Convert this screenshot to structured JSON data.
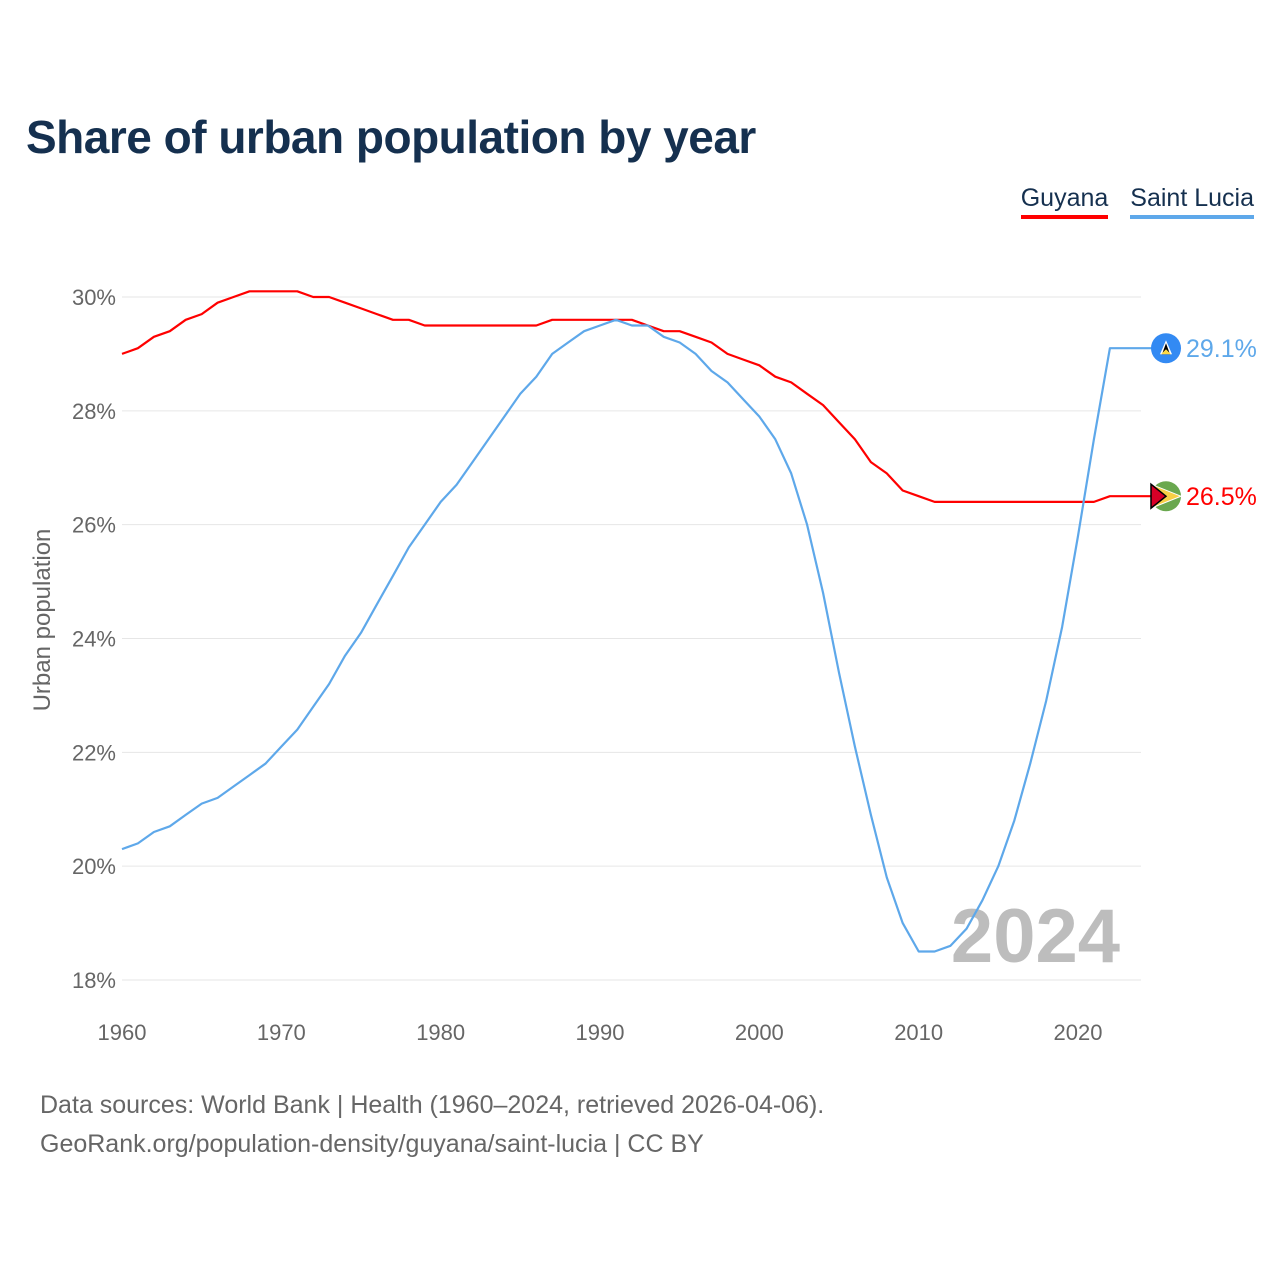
{
  "chart_data": {
    "type": "line",
    "title": "Share of urban population by year",
    "ylabel": "Urban population",
    "xlabel": "",
    "ylim": [
      18,
      30
    ],
    "xlim": [
      1960,
      2024
    ],
    "yticks": [
      "18%",
      "20%",
      "22%",
      "24%",
      "26%",
      "28%",
      "30%"
    ],
    "ytick_values": [
      18,
      20,
      22,
      24,
      26,
      28,
      30
    ],
    "xticks": [
      1960,
      1970,
      1980,
      1990,
      2000,
      2010,
      2020
    ],
    "grid": true,
    "legend_position": "top-right",
    "year_watermark": "2024",
    "series": [
      {
        "name": "Guyana",
        "color": "#ff0000",
        "end_label": "26.5%",
        "values": [
          29.0,
          29.1,
          29.3,
          29.4,
          29.6,
          29.7,
          29.9,
          30.0,
          30.1,
          30.1,
          30.1,
          30.1,
          30.0,
          30.0,
          29.9,
          29.8,
          29.7,
          29.6,
          29.6,
          29.5,
          29.5,
          29.5,
          29.5,
          29.5,
          29.5,
          29.5,
          29.5,
          29.6,
          29.6,
          29.6,
          29.6,
          29.6,
          29.6,
          29.5,
          29.4,
          29.4,
          29.3,
          29.2,
          29.0,
          28.9,
          28.8,
          28.6,
          28.5,
          28.3,
          28.1,
          27.8,
          27.5,
          27.1,
          26.9,
          26.6,
          26.5,
          26.4,
          26.4,
          26.4,
          26.4,
          26.4,
          26.4,
          26.4,
          26.4,
          26.4,
          26.4,
          26.4,
          26.5,
          26.5,
          26.5
        ]
      },
      {
        "name": "Saint Lucia",
        "color": "#5ea8ea",
        "end_label": "29.1%",
        "values": [
          20.3,
          20.4,
          20.6,
          20.7,
          20.9,
          21.1,
          21.2,
          21.4,
          21.6,
          21.8,
          22.1,
          22.4,
          22.8,
          23.2,
          23.7,
          24.1,
          24.6,
          25.1,
          25.6,
          26.0,
          26.4,
          26.7,
          27.1,
          27.5,
          27.9,
          28.3,
          28.6,
          29.0,
          29.2,
          29.4,
          29.5,
          29.6,
          29.5,
          29.5,
          29.3,
          29.2,
          29.0,
          28.7,
          28.5,
          28.2,
          27.9,
          27.5,
          26.9,
          26.0,
          24.8,
          23.4,
          22.1,
          20.9,
          19.8,
          19.0,
          18.5,
          18.5,
          18.6,
          18.9,
          19.4,
          20.0,
          20.8,
          21.8,
          22.9,
          24.2,
          25.8,
          27.5,
          29.1,
          29.1,
          29.1
        ]
      }
    ]
  },
  "legend": {
    "guyana": "Guyana",
    "saint_lucia": "Saint Lucia"
  },
  "footer": {
    "line1": "Data sources: World Bank | Health (1960–2024, retrieved 2026-04-06).",
    "line2": "GeoRank.org/population-density/guyana/saint-lucia | CC BY"
  }
}
